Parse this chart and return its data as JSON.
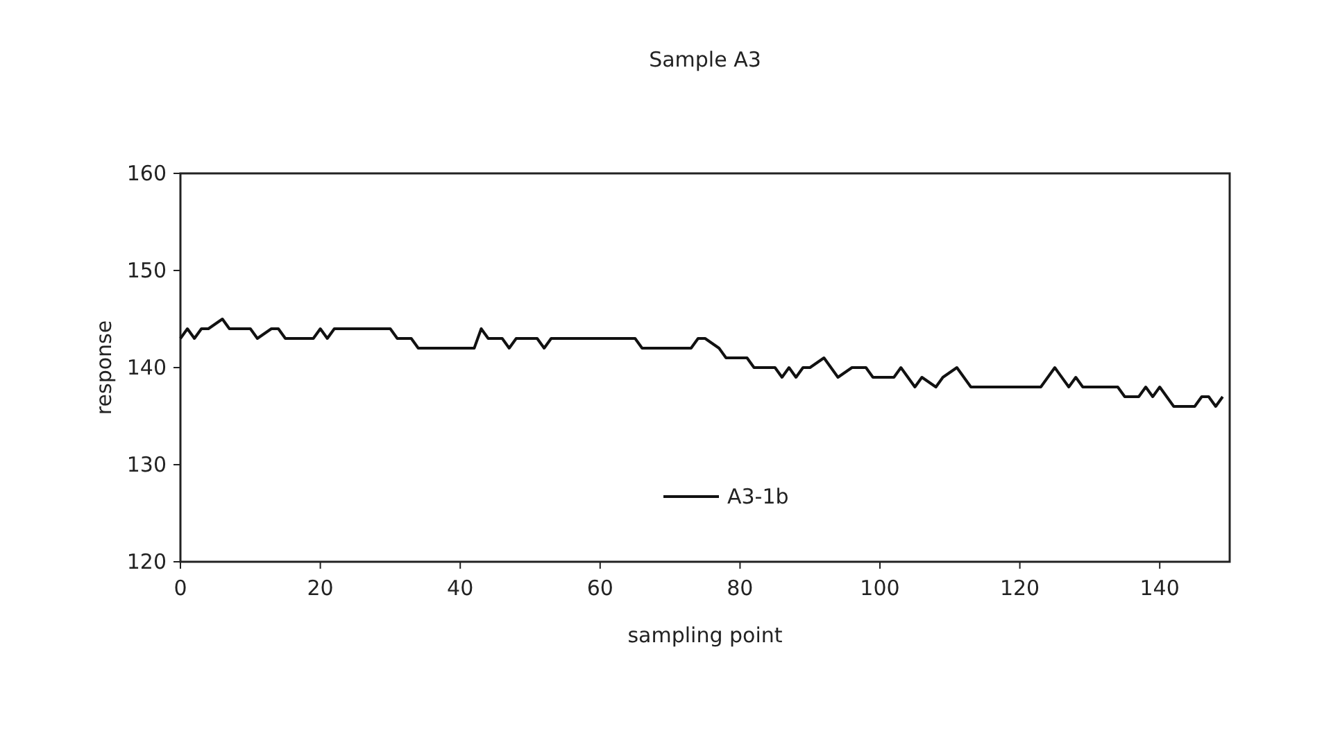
{
  "chart_data": {
    "type": "line",
    "title": "Sample A3",
    "xlabel": "sampling point",
    "ylabel": "response",
    "xlim": [
      0,
      150
    ],
    "xticks": [
      0,
      20,
      40,
      60,
      80,
      100,
      120,
      140
    ],
    "ylim": [
      120,
      160
    ],
    "yticks": [
      120,
      130,
      140,
      150,
      160
    ],
    "grid": false,
    "legend": "bottom",
    "marker": "none",
    "line_style": "solid",
    "series": [
      {
        "name": "A3-1b",
        "color": "#111111",
        "x": [
          0,
          1,
          2,
          3,
          4,
          6,
          7,
          10,
          11,
          13,
          14,
          15,
          19,
          20,
          21,
          22,
          30,
          31,
          33,
          34,
          42,
          43,
          44,
          46,
          47,
          48,
          51,
          52,
          53,
          65,
          66,
          73,
          74,
          75,
          77,
          78,
          81,
          82,
          85,
          86,
          87,
          88,
          89,
          90,
          92,
          94,
          96,
          98,
          99,
          102,
          103,
          104,
          105,
          106,
          108,
          109,
          111,
          113,
          123,
          125,
          127,
          128,
          129,
          134,
          135,
          137,
          138,
          139,
          140,
          142,
          145,
          146,
          147,
          148,
          149
        ],
        "values": [
          143,
          144,
          143,
          144,
          144,
          145,
          144,
          144,
          143,
          144,
          144,
          143,
          143,
          144,
          143,
          144,
          144,
          143,
          143,
          142,
          142,
          144,
          143,
          143,
          142,
          143,
          143,
          142,
          143,
          143,
          142,
          142,
          143,
          143,
          142,
          141,
          141,
          140,
          140,
          139,
          140,
          139,
          140,
          140,
          141,
          139,
          140,
          140,
          139,
          139,
          140,
          139,
          138,
          139,
          138,
          139,
          140,
          138,
          138,
          140,
          138,
          139,
          138,
          138,
          137,
          137,
          138,
          137,
          138,
          136,
          136,
          137,
          137,
          136,
          137
        ]
      }
    ]
  }
}
